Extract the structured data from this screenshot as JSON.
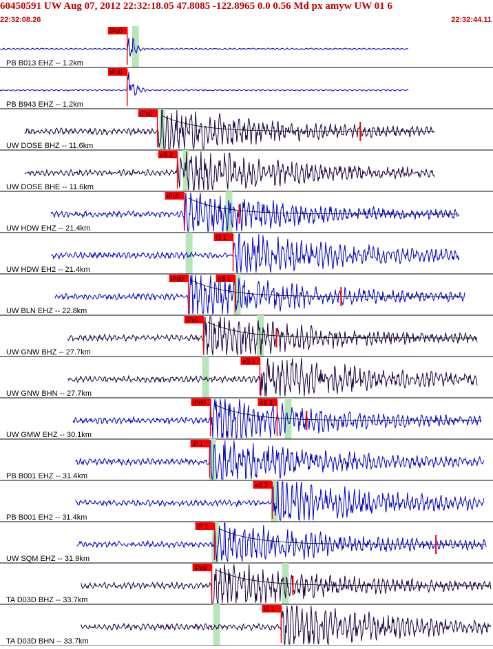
{
  "header": {
    "title": "60450591 UW Aug 07, 2012 22:32:18.05   47.8085 -122.8965  0.0 0.56 Md px amyw UW 01   6",
    "start_time": "22:32:08.26",
    "end_time": "22:32:44.11"
  },
  "colors": {
    "title": "#c00000",
    "trace_blue": "#0000cc",
    "trace_dark": "#1a0040",
    "pick_red": "#ff0000",
    "window_green": "#b8e6b8",
    "grid": "#000000"
  },
  "chart_data": {
    "type": "seismogram",
    "time_range": [
      "22:32:08.26",
      "22:32:44.11"
    ],
    "traces": [
      {
        "label": "PB B013 EHZ -- 1.2km",
        "color": "blue",
        "picks": [
          {
            "name": "iPd0",
            "time": 9.25
          }
        ],
        "s_picks": [],
        "window": [
          9.6,
          10.1
        ],
        "start": 0.0,
        "end": 29.7,
        "coda": null
      },
      {
        "label": "PB B943 EHZ -- 1.2km",
        "color": "blue",
        "picks": [
          {
            "name": "iPd0",
            "time": 9.25
          }
        ],
        "s_picks": [],
        "window": [],
        "start": 0.0,
        "end": 29.7,
        "coda": null
      },
      {
        "label": "UW DOSE BHZ -- 11.6km",
        "color": "dark",
        "picks": [
          {
            "name": "iPc0",
            "time": 11.45
          }
        ],
        "s_picks": [],
        "window": [
          11.6,
          12.0
        ],
        "start": 1.8,
        "end": 31.6,
        "coda": 26.2
      },
      {
        "label": "UW DOSE BHE -- 11.6km",
        "color": "dark",
        "picks": [],
        "s_picks": [
          {
            "name": "eS 2",
            "time": 12.9
          }
        ],
        "window": [
          13.3,
          13.7
        ],
        "start": 1.8,
        "end": 31.6,
        "coda": null
      },
      {
        "label": "UW HDW EHZ -- 21.4km",
        "color": "blue",
        "picks": [
          {
            "name": "iPc0",
            "time": 13.4
          }
        ],
        "s_picks": [],
        "window": [
          16.4,
          16.9
        ],
        "start": 3.7,
        "end": 33.4,
        "coda": 17.4
      },
      {
        "label": "UW HDW EH2 -- 21.4km",
        "color": "blue",
        "picks": [],
        "s_picks": [
          {
            "name": "iS 1",
            "time": 16.95
          }
        ],
        "window": [
          13.5,
          14.0
        ],
        "start": 3.7,
        "end": 33.4,
        "coda": null
      },
      {
        "label": "UW BLN EHZ -- 22.8km",
        "color": "blue",
        "picks": [
          {
            "name": "iPd0",
            "time": 13.7
          }
        ],
        "s_picks": [
          {
            "name": "eS 1",
            "time": 17.1
          }
        ],
        "window": [
          17.0,
          17.5
        ],
        "start": 4.0,
        "end": 33.8,
        "coda": 24.8
      },
      {
        "label": "UW GNW BHZ -- 27.7km",
        "color": "dark",
        "picks": [
          {
            "name": "iPc0",
            "time": 14.8
          }
        ],
        "s_picks": [],
        "window": [
          18.7,
          19.2
        ],
        "start": 4.9,
        "end": 34.7,
        "coda": 20.1
      },
      {
        "label": "UW GNW BHN -- 27.7km",
        "color": "dark",
        "picks": [],
        "s_picks": [
          {
            "name": "eS 1",
            "time": 18.9
          }
        ],
        "window": [
          14.7,
          15.2
        ],
        "start": 4.9,
        "end": 34.7,
        "coda": null
      },
      {
        "label": "UW GMW EHZ -- 30.1km",
        "color": "blue",
        "picks": [
          {
            "name": "iPd0",
            "time": 15.3
          }
        ],
        "s_picks": [
          {
            "name": "eS 2",
            "time": 20.15
          }
        ],
        "window": [
          20.7,
          21.2
        ],
        "start": 5.3,
        "end": 35.0,
        "coda": 22.3
      },
      {
        "label": "PB B001 EHZ -- 31.4km",
        "color": "blue",
        "picks": [
          {
            "name": "iP 1",
            "time": 15.25
          }
        ],
        "s_picks": [],
        "window": [
          15.2,
          15.7
        ],
        "start": 5.5,
        "end": 35.2,
        "coda": null
      },
      {
        "label": "PB B001 EH2 -- 31.4km",
        "color": "blue",
        "picks": [],
        "s_picks": [
          {
            "name": "eS 2",
            "time": 19.8
          }
        ],
        "window": [
          19.7,
          20.2
        ],
        "start": 5.5,
        "end": 35.2,
        "coda": null
      },
      {
        "label": "UW SQM EHZ -- 31.9km",
        "color": "blue",
        "picks": [
          {
            "name": "iP 1",
            "time": 15.6
          }
        ],
        "s_picks": [],
        "window": [
          15.4,
          15.9
        ],
        "start": 5.6,
        "end": 35.4,
        "coda": 31.7
      },
      {
        "label": "TA D03D BHZ -- 33.7km",
        "color": "dark",
        "picks": [
          {
            "name": "iPc0",
            "time": 15.4
          }
        ],
        "s_picks": [],
        "window": [
          20.5,
          21.0
        ],
        "start": 5.9,
        "end": 35.7,
        "coda": 21.3
      },
      {
        "label": "TA D03D BHN -- 33.7km",
        "color": "dark",
        "picks": [],
        "s_picks": [
          {
            "name": "iS 1",
            "time": 20.45
          }
        ],
        "window": [
          15.5,
          16.0
        ],
        "start": 5.9,
        "end": 35.7,
        "coda": null
      }
    ]
  }
}
